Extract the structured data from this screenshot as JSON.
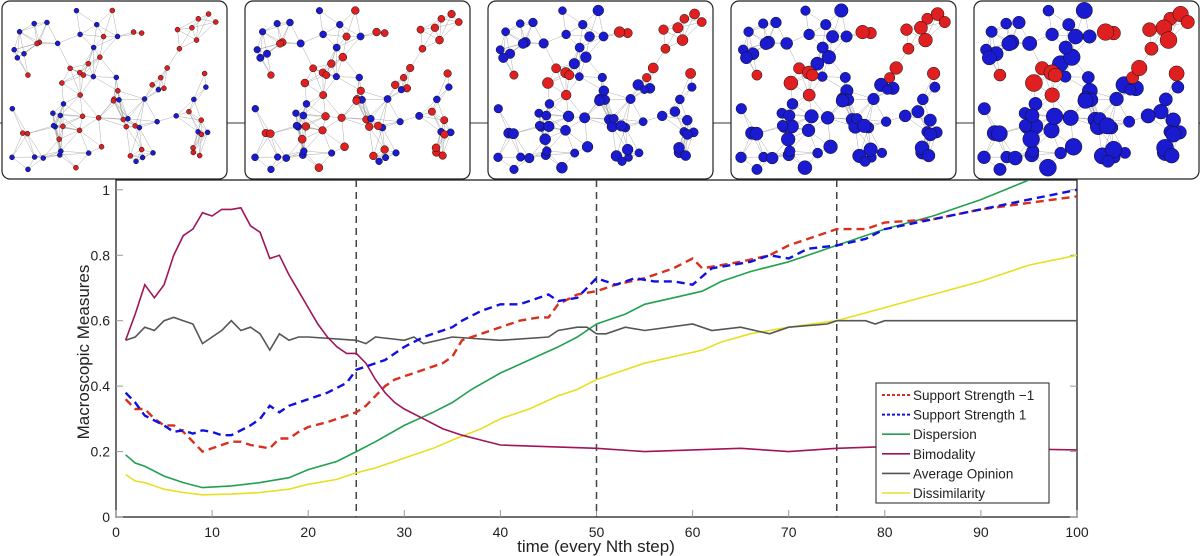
{
  "chart_data": {
    "type": "line",
    "xlabel": "time (every Nth step)",
    "ylabel": "Macroscopic Measures",
    "xlim": [
      0,
      100
    ],
    "ylim": [
      0,
      1.03
    ],
    "xticks": [
      0,
      10,
      20,
      30,
      40,
      50,
      60,
      70,
      80,
      90,
      100
    ],
    "yticks": [
      0,
      0.2,
      0.4,
      0.6,
      0.8,
      1
    ],
    "ytick_labels": [
      "0",
      "0.2",
      "0.4",
      "0.6",
      "0.8",
      "1"
    ],
    "grid": false,
    "legend_position": "bottom-right",
    "vertical_markers": [
      25,
      50,
      75
    ],
    "series": [
      {
        "name": "Support Strength −1",
        "color": "#d7301f",
        "style": "dashed",
        "x": [
          1,
          2,
          3,
          4,
          5,
          6,
          7,
          8,
          9,
          10,
          11,
          12,
          13,
          14,
          15,
          16,
          17,
          18,
          19,
          20,
          22,
          24,
          25,
          26,
          27,
          28,
          29,
          30,
          32,
          34,
          35,
          36,
          38,
          40,
          42,
          44,
          45,
          46,
          48,
          50,
          52,
          55,
          58,
          60,
          61,
          63,
          65,
          68,
          70,
          72,
          75,
          78,
          80,
          85,
          90,
          95,
          100
        ],
        "y": [
          0.36,
          0.33,
          0.33,
          0.3,
          0.28,
          0.28,
          0.26,
          0.23,
          0.2,
          0.21,
          0.22,
          0.23,
          0.23,
          0.22,
          0.215,
          0.21,
          0.24,
          0.24,
          0.26,
          0.275,
          0.29,
          0.31,
          0.32,
          0.34,
          0.37,
          0.4,
          0.42,
          0.43,
          0.45,
          0.47,
          0.49,
          0.54,
          0.56,
          0.58,
          0.6,
          0.61,
          0.61,
          0.65,
          0.68,
          0.69,
          0.71,
          0.73,
          0.76,
          0.79,
          0.76,
          0.77,
          0.78,
          0.8,
          0.83,
          0.85,
          0.88,
          0.88,
          0.9,
          0.91,
          0.94,
          0.96,
          0.98
        ]
      },
      {
        "name": "Support Strength 1",
        "color": "#1010e0",
        "style": "dashed",
        "x": [
          1,
          2,
          3,
          5,
          6,
          7,
          8,
          9,
          10,
          11,
          12,
          14,
          15,
          16,
          17,
          18,
          20,
          22,
          24,
          25,
          26,
          28,
          30,
          32,
          34,
          35,
          36,
          38,
          40,
          42,
          44,
          45,
          46,
          48,
          50,
          52,
          54,
          56,
          58,
          60,
          62,
          64,
          66,
          68,
          70,
          72,
          75,
          78,
          80,
          85,
          90,
          95,
          100
        ],
        "y": [
          0.38,
          0.35,
          0.31,
          0.28,
          0.26,
          0.265,
          0.255,
          0.265,
          0.26,
          0.25,
          0.25,
          0.28,
          0.3,
          0.34,
          0.32,
          0.34,
          0.36,
          0.38,
          0.41,
          0.45,
          0.46,
          0.48,
          0.52,
          0.55,
          0.57,
          0.58,
          0.6,
          0.63,
          0.65,
          0.65,
          0.67,
          0.68,
          0.66,
          0.67,
          0.73,
          0.71,
          0.73,
          0.72,
          0.72,
          0.71,
          0.76,
          0.77,
          0.78,
          0.8,
          0.79,
          0.82,
          0.83,
          0.85,
          0.88,
          0.91,
          0.94,
          0.97,
          1.0
        ]
      },
      {
        "name": "Dispersion",
        "color": "#22a050",
        "style": "solid",
        "x": [
          1,
          2,
          3,
          5,
          7,
          9,
          12,
          15,
          18,
          20,
          23,
          25,
          27,
          30,
          33,
          35,
          37,
          40,
          43,
          46,
          48,
          50,
          53,
          55,
          58,
          61,
          63,
          66,
          70,
          75,
          80,
          85,
          90,
          95,
          96
        ],
        "y": [
          0.19,
          0.165,
          0.155,
          0.125,
          0.105,
          0.09,
          0.095,
          0.105,
          0.12,
          0.145,
          0.17,
          0.2,
          0.23,
          0.28,
          0.32,
          0.35,
          0.39,
          0.44,
          0.48,
          0.52,
          0.55,
          0.59,
          0.62,
          0.65,
          0.67,
          0.69,
          0.72,
          0.75,
          0.78,
          0.83,
          0.88,
          0.92,
          0.97,
          1.03,
          1.04
        ]
      },
      {
        "name": "Bimodality",
        "color": "#a0145a",
        "style": "solid",
        "x": [
          1,
          2,
          3,
          4,
          5,
          6,
          7,
          8,
          9,
          10,
          11,
          12,
          13,
          14,
          15,
          16,
          17,
          18,
          19,
          20,
          21,
          22,
          23,
          24,
          25,
          26,
          27,
          28,
          29,
          30,
          32,
          34,
          36,
          38,
          40,
          45,
          50,
          55,
          60,
          65,
          70,
          75,
          80,
          90,
          100
        ],
        "y": [
          0.54,
          0.62,
          0.71,
          0.67,
          0.71,
          0.8,
          0.86,
          0.88,
          0.93,
          0.92,
          0.94,
          0.94,
          0.945,
          0.89,
          0.87,
          0.79,
          0.8,
          0.74,
          0.69,
          0.64,
          0.59,
          0.55,
          0.52,
          0.5,
          0.5,
          0.47,
          0.42,
          0.38,
          0.35,
          0.33,
          0.3,
          0.27,
          0.25,
          0.235,
          0.22,
          0.215,
          0.21,
          0.2,
          0.205,
          0.21,
          0.2,
          0.21,
          0.215,
          0.21,
          0.205
        ]
      },
      {
        "name": "Average Opinion",
        "color": "#555555",
        "style": "solid",
        "x": [
          1,
          2,
          3,
          4,
          5,
          6,
          7,
          8,
          9,
          10,
          11,
          12,
          13,
          14,
          15,
          16,
          17,
          18,
          19,
          20,
          25,
          26,
          27,
          30,
          31,
          32,
          35,
          40,
          45,
          46,
          48,
          49,
          50,
          51,
          53,
          55,
          60,
          62,
          65,
          68,
          70,
          74,
          75,
          78,
          79,
          80,
          100
        ],
        "y": [
          0.54,
          0.55,
          0.58,
          0.57,
          0.6,
          0.61,
          0.6,
          0.59,
          0.53,
          0.55,
          0.57,
          0.6,
          0.57,
          0.58,
          0.56,
          0.51,
          0.56,
          0.54,
          0.55,
          0.55,
          0.54,
          0.53,
          0.55,
          0.54,
          0.55,
          0.53,
          0.55,
          0.54,
          0.55,
          0.57,
          0.58,
          0.58,
          0.56,
          0.56,
          0.58,
          0.57,
          0.59,
          0.57,
          0.58,
          0.56,
          0.58,
          0.59,
          0.6,
          0.6,
          0.59,
          0.6,
          0.6
        ]
      },
      {
        "name": "Dissimilarity",
        "color": "#e6e020",
        "style": "solid",
        "x": [
          1,
          2,
          3,
          5,
          7,
          9,
          12,
          15,
          18,
          20,
          23,
          25,
          27,
          30,
          33,
          35,
          38,
          40,
          43,
          46,
          48,
          50,
          53,
          55,
          58,
          61,
          63,
          66,
          70,
          75,
          80,
          85,
          90,
          95,
          100
        ],
        "y": [
          0.13,
          0.11,
          0.105,
          0.085,
          0.075,
          0.068,
          0.07,
          0.075,
          0.085,
          0.1,
          0.115,
          0.135,
          0.15,
          0.18,
          0.21,
          0.235,
          0.27,
          0.3,
          0.33,
          0.37,
          0.39,
          0.42,
          0.45,
          0.47,
          0.49,
          0.51,
          0.535,
          0.56,
          0.58,
          0.6,
          0.64,
          0.68,
          0.72,
          0.77,
          0.8
        ]
      }
    ]
  },
  "network_snapshots": {
    "count": 5,
    "node_colors": {
      "opinion_minus_1": "#e02020",
      "opinion_plus_1": "#1a1ad0"
    },
    "edge_color": "#999999"
  }
}
